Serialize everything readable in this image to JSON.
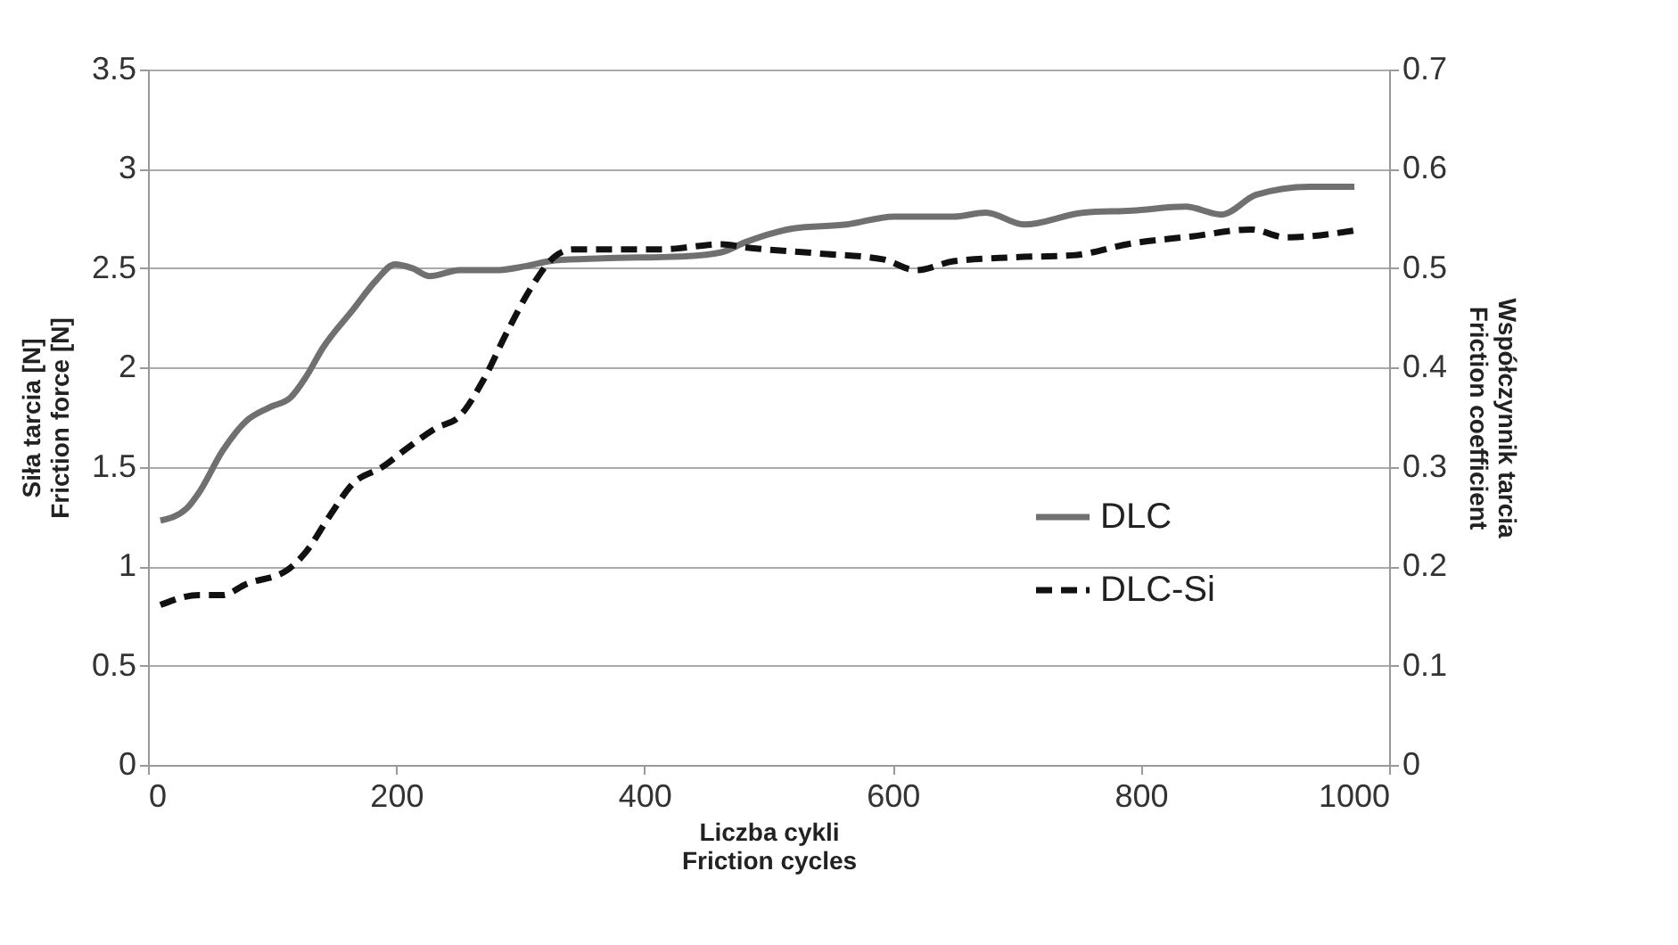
{
  "chart_data": {
    "type": "line",
    "xlabel": "Liczba cykli\nFriction cycles",
    "ylabel": "Siła tarcia [N]\nFriction force [N]",
    "y2label": "Współczynnik tarcia\nFriction coefficient",
    "xlim": [
      0,
      1000
    ],
    "xticks": [
      0,
      200,
      400,
      600,
      800,
      1000
    ],
    "ylim": [
      0,
      3.5
    ],
    "yticks": [
      0,
      0.5,
      1,
      1.5,
      2,
      2.5,
      3,
      3.5
    ],
    "y2lim": [
      0,
      0.7
    ],
    "y2ticks": [
      0,
      0.1,
      0.2,
      0.3,
      0.4,
      0.5,
      0.6,
      0.7
    ],
    "grid": "y",
    "legend": "right",
    "series": [
      {
        "name": "DLC",
        "color": "#707070",
        "line_style": "solid",
        "x": [
          10,
          31,
          41,
          60,
          79,
          98,
          115,
          127,
          141,
          165,
          184,
          199,
          213,
          227,
          251,
          280,
          304,
          328,
          366,
          433,
          462,
          481,
          520,
          563,
          601,
          649,
          675,
          706,
          754,
          793,
          836,
          865,
          893,
          936,
          972
        ],
        "values": [
          1.23,
          1.29,
          1.37,
          1.58,
          1.73,
          1.8,
          1.85,
          1.95,
          2.1,
          2.29,
          2.44,
          2.52,
          2.5,
          2.46,
          2.49,
          2.49,
          2.51,
          2.54,
          2.55,
          2.56,
          2.58,
          2.63,
          2.7,
          2.72,
          2.76,
          2.76,
          2.78,
          2.72,
          2.78,
          2.79,
          2.81,
          2.77,
          2.87,
          2.91,
          2.91
        ]
      },
      {
        "name": "DLC-Si",
        "color": "#111111",
        "line_style": "dashed",
        "axis": "y2",
        "x": [
          10,
          41,
          60,
          79,
          112,
          127,
          146,
          165,
          189,
          208,
          232,
          251,
          270,
          289,
          308,
          328,
          342,
          414,
          462,
          481,
          539,
          592,
          619,
          649,
          697,
          745,
          793,
          841,
          889,
          917,
          972
        ],
        "values": [
          0.161,
          0.171,
          0.171,
          0.182,
          0.196,
          0.214,
          0.25,
          0.283,
          0.3,
          0.318,
          0.339,
          0.351,
          0.387,
          0.435,
          0.479,
          0.512,
          0.519,
          0.519,
          0.524,
          0.521,
          0.515,
          0.509,
          0.498,
          0.507,
          0.511,
          0.513,
          0.525,
          0.532,
          0.539,
          0.531,
          0.538
        ]
      }
    ]
  }
}
